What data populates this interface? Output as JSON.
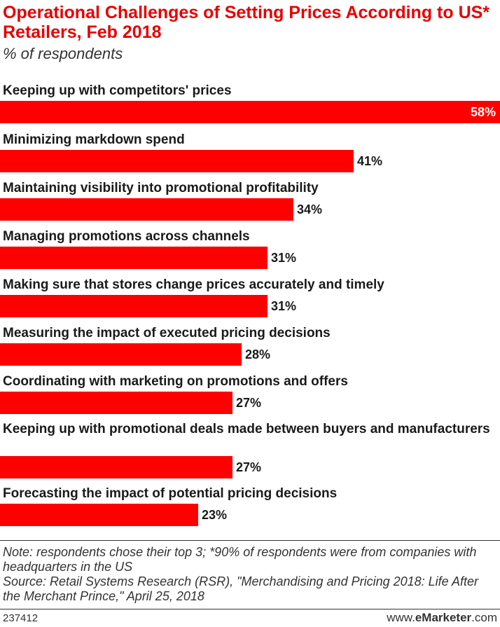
{
  "header": {
    "title": "Operational Challenges of Setting Prices According to US* Retailers, Feb 2018",
    "subtitle": "% of respondents"
  },
  "chart_data": {
    "type": "bar",
    "orientation": "horizontal",
    "categories": [
      "Keeping up with competitors' prices",
      "Minimizing markdown spend",
      "Maintaining visibility into promotional profitability",
      "Managing promotions across channels",
      "Making sure that stores change prices accurately and timely",
      "Measuring the impact of executed pricing decisions",
      "Coordinating with marketing on promotions and offers",
      "Keeping up with promotional deals made between buyers and manufacturers",
      "Forecasting the impact of potential pricing decisions"
    ],
    "values": [
      58,
      41,
      34,
      31,
      31,
      28,
      27,
      27,
      23
    ],
    "value_labels": [
      "58%",
      "41%",
      "34%",
      "31%",
      "31%",
      "28%",
      "27%",
      "27%",
      "23%"
    ],
    "unit": "%",
    "xlim": [
      0,
      58
    ],
    "bar_color": "#ff0000",
    "grid": false,
    "legend": "none"
  },
  "footer": {
    "note": "Note: respondents chose their top 3; *90% of respondents were from companies with headquarters in the US",
    "source": "Source: Retail Systems Research (RSR), \"Merchandising and Pricing 2018: Life After the Merchant Prince,\" April 25, 2018",
    "chart_id": "237412",
    "brand_prefix": "www.",
    "brand_name": "eMarketer",
    "brand_suffix": ".com"
  }
}
